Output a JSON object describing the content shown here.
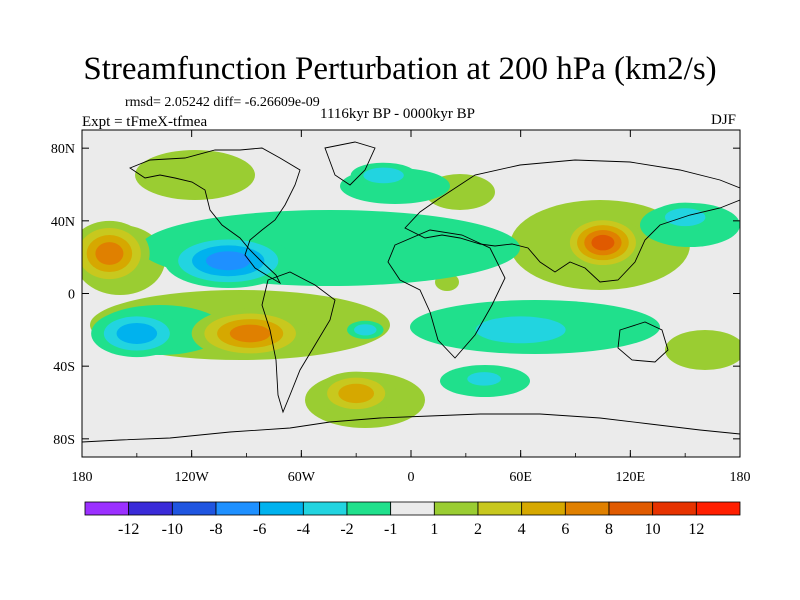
{
  "title": "Streamfunction Perturbation at 200 hPa (km2/s)",
  "stats_line": "rmsd= 2.05242 diff= -6.26609e-09",
  "experiment_line": "Expt = tFmeX-tfmea",
  "period_line": "1116kyr BP - 0000kyr BP",
  "season": "DJF",
  "map": {
    "lon_range": [
      -180,
      180
    ],
    "lat_range": [
      -90,
      90
    ],
    "lon_ticks": [
      {
        "value": -180,
        "label": "180"
      },
      {
        "value": -120,
        "label": "120W"
      },
      {
        "value": -60,
        "label": "60W"
      },
      {
        "value": 0,
        "label": "0"
      },
      {
        "value": 60,
        "label": "60E"
      },
      {
        "value": 120,
        "label": "120E"
      },
      {
        "value": 180,
        "label": "180"
      }
    ],
    "lat_ticks": [
      {
        "value": 80,
        "label": "80N"
      },
      {
        "value": 40,
        "label": "40N"
      },
      {
        "value": 0,
        "label": "0"
      },
      {
        "value": -40,
        "label": "40S"
      },
      {
        "value": -80,
        "label": "80S"
      }
    ],
    "anomalies": [
      {
        "lon": -165,
        "lat": 22,
        "value": 6,
        "rx": 22,
        "ry": 18
      },
      {
        "lon": -100,
        "lat": 18,
        "value": -6,
        "rx": 35,
        "ry": 15
      },
      {
        "lon": -88,
        "lat": -22,
        "value": 6,
        "rx": 32,
        "ry": 14
      },
      {
        "lon": -150,
        "lat": -22,
        "value": -4,
        "rx": 25,
        "ry": 13
      },
      {
        "lon": -30,
        "lat": -55,
        "value": 4,
        "rx": 22,
        "ry": 12
      },
      {
        "lon": 105,
        "lat": 28,
        "value": 8,
        "rx": 22,
        "ry": 15
      },
      {
        "lon": 60,
        "lat": -20,
        "value": -2,
        "rx": 40,
        "ry": 12
      },
      {
        "lon": -15,
        "lat": 65,
        "value": -2,
        "rx": 18,
        "ry": 7
      },
      {
        "lon": -25,
        "lat": -20,
        "value": -2,
        "rx": 10,
        "ry": 5
      },
      {
        "lon": 40,
        "lat": -47,
        "value": -2,
        "rx": 15,
        "ry": 6
      },
      {
        "lon": 150,
        "lat": 42,
        "value": -2,
        "rx": 18,
        "ry": 8
      }
    ]
  },
  "colorbar": {
    "colors": [
      "#9b30ff",
      "#3a2bd8",
      "#1f55e0",
      "#1e90ff",
      "#00b2ee",
      "#22d4e0",
      "#20e08c",
      "#ebebeb",
      "#9acd32",
      "#c8c81e",
      "#d6a800",
      "#e08000",
      "#e05a00",
      "#e63200",
      "#ff1e00"
    ],
    "labels": [
      "-12",
      "-10",
      "-8",
      "-6",
      "-4",
      "-2",
      "-1",
      "1",
      "2",
      "4",
      "6",
      "8",
      "10",
      "12"
    ]
  }
}
